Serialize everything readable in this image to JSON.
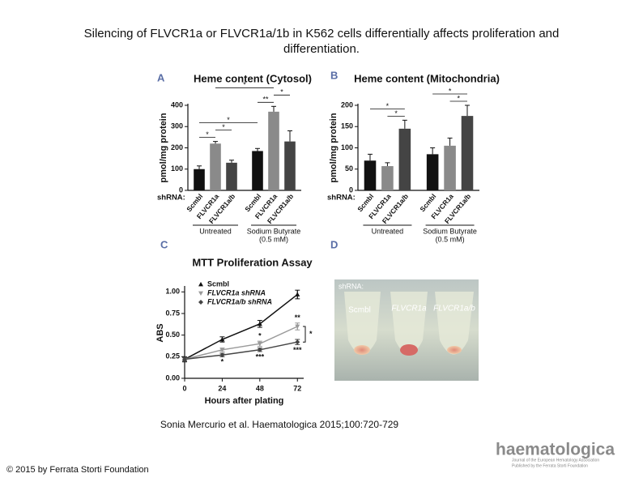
{
  "title": "Silencing of FLVCR1a or FLVCR1a/1b in K562 cells differentially affects proliferation and differentiation.",
  "panel_labels": [
    "A",
    "B",
    "C",
    "D"
  ],
  "chart_data": [
    {
      "type": "bar",
      "title": "Heme content (Cytosol)",
      "ylabel": "pmol/mg protein",
      "x_prefix": "shRNA:",
      "categories": [
        "Scmbl",
        "FLVCR1a",
        "FLVCR1a/b",
        "Scmbl",
        "FLVCR1a",
        "FLVCR1a/b"
      ],
      "values": [
        100,
        220,
        130,
        185,
        370,
        230
      ],
      "errors": [
        15,
        10,
        12,
        12,
        25,
        50
      ],
      "colors": [
        "#111111",
        "#8a8a8a",
        "#444444",
        "#111111",
        "#8a8a8a",
        "#444444"
      ],
      "groups": [
        {
          "label": [
            "Untreated"
          ],
          "count": 3
        },
        {
          "label": [
            "Sodium Butyrate",
            "(0.5 mM)"
          ],
          "count": 3
        }
      ],
      "ylim": [
        0,
        400
      ],
      "yticks": [
        0,
        100,
        200,
        300,
        400
      ],
      "significance": [
        {
          "label": "*",
          "between": [
            0,
            1
          ]
        },
        {
          "label": "*",
          "between": [
            1,
            2
          ]
        },
        {
          "label": "*",
          "between": [
            0,
            3
          ]
        },
        {
          "label": "**",
          "between": [
            3,
            4
          ]
        },
        {
          "label": "*",
          "between": [
            4,
            5
          ]
        },
        {
          "label": "*",
          "between": [
            1,
            4
          ]
        }
      ]
    },
    {
      "type": "bar",
      "title": "Heme content (Mitochondria)",
      "ylabel": "pmol/mg protein",
      "x_prefix": "shRNA:",
      "categories": [
        "Scmbl",
        "FLVCR1a",
        "FLVCR1a/b",
        "Scmbl",
        "FLVCR1a",
        "FLVCR1a/b"
      ],
      "values": [
        70,
        57,
        145,
        85,
        105,
        175
      ],
      "errors": [
        15,
        8,
        20,
        15,
        18,
        25
      ],
      "colors": [
        "#111111",
        "#8a8a8a",
        "#444444",
        "#111111",
        "#8a8a8a",
        "#444444"
      ],
      "groups": [
        {
          "label": [
            "Untreated"
          ],
          "count": 3
        },
        {
          "label": [
            "Sodium Butyrate",
            "(0.5 mM)"
          ],
          "count": 3
        }
      ],
      "ylim": [
        0,
        200
      ],
      "yticks": [
        0,
        50,
        100,
        150,
        200
      ],
      "significance": [
        {
          "label": "*",
          "between": [
            1,
            2
          ]
        },
        {
          "label": "*",
          "between": [
            0,
            2
          ]
        },
        {
          "label": "*",
          "between": [
            4,
            5
          ]
        },
        {
          "label": "*",
          "between": [
            3,
            5
          ]
        }
      ]
    },
    {
      "type": "line",
      "title": "MTT Proliferation Assay",
      "xlabel": "Hours after plating",
      "ylabel": "ABS",
      "x": [
        0,
        24,
        48,
        72
      ],
      "xlim": [
        0,
        76
      ],
      "xticks": [
        0,
        24,
        48,
        72
      ],
      "ylim": [
        0,
        1.05
      ],
      "yticks": [
        {
          "value": 0,
          "label": "0.00"
        },
        {
          "value": 0.25,
          "label": "0.25"
        },
        {
          "value": 0.5,
          "label": "0.50"
        },
        {
          "value": 0.75,
          "label": "0.75"
        },
        {
          "value": 1,
          "label": "1.00"
        }
      ],
      "series": [
        {
          "name": "Scmbl",
          "color": "#111111",
          "marker": "triangle",
          "values": [
            0.22,
            0.45,
            0.63,
            0.97
          ],
          "errors": [
            0.03,
            0.03,
            0.04,
            0.05
          ]
        },
        {
          "name": "FLVCR1a shRNA",
          "color": "#9a9a9a",
          "marker": "down-triangle",
          "values": [
            0.22,
            0.33,
            0.4,
            0.6
          ],
          "errors": [
            0.02,
            0.02,
            0.03,
            0.04
          ]
        },
        {
          "name": "FLVCR1a/b shRNA",
          "color": "#444444",
          "marker": "diamond",
          "values": [
            0.22,
            0.27,
            0.33,
            0.42
          ],
          "errors": [
            0.02,
            0.02,
            0.02,
            0.03
          ]
        }
      ],
      "annotations": [
        {
          "text": "**",
          "series": 1,
          "index": 3,
          "side": "above"
        },
        {
          "text": "***",
          "series": 2,
          "index": 3,
          "side": "below"
        },
        {
          "text": "*",
          "series": 1,
          "index": 2,
          "side": "above"
        },
        {
          "text": "***",
          "series": 2,
          "index": 2,
          "side": "below"
        },
        {
          "text": "*",
          "series": 2,
          "index": 1,
          "side": "below"
        }
      ],
      "bracket": {
        "text": "*",
        "series": [
          1,
          2
        ],
        "index": 3
      }
    }
  ],
  "photo": {
    "label": "shRNA:",
    "tubes": [
      "Scmbl",
      "FLVCR1a",
      "FLVCR1a/b"
    ]
  },
  "citation": "Sonia Mercurio et al. Haematologica 2015;100:720-729",
  "copyright": "© 2015 by Ferrata Storti Foundation",
  "logo": {
    "name": "haematologica",
    "tagline": [
      "Journal of the European Hematology Association",
      "Published by the Ferrata Storti Foundation"
    ]
  }
}
